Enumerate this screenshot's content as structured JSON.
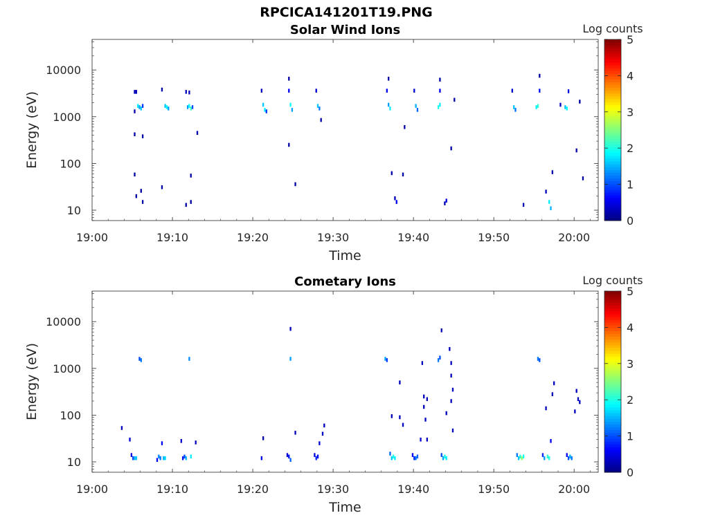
{
  "figure": {
    "title": "RPCICA141201T19.PNG"
  },
  "chart_data": [
    {
      "type": "heatmap",
      "title": "Solar Wind Ions",
      "xlabel": "Time",
      "ylabel": "Energy (eV)",
      "x_unit": "minutes after 19:00",
      "xlim": [
        0,
        63
      ],
      "ylim": [
        6,
        45000
      ],
      "y_scale": "log",
      "xticks": [
        0,
        10,
        20,
        30,
        40,
        50,
        60
      ],
      "xticklabels": [
        "19:00",
        "19:10",
        "19:20",
        "19:30",
        "19:40",
        "19:50",
        "20:00"
      ],
      "yticks": [
        10,
        100,
        1000,
        10000
      ],
      "yticklabels": [
        "10",
        "100",
        "1000",
        "10000"
      ],
      "colorbar": {
        "label": "Log counts",
        "range": [
          0,
          5
        ],
        "ticks": [
          0,
          1,
          2,
          3,
          4,
          5
        ],
        "colormap": "jet"
      },
      "cells": [
        {
          "t": 5.3,
          "e": 3400,
          "v": 0.3
        },
        {
          "t": 5.5,
          "e": 3400,
          "v": 0.3
        },
        {
          "t": 5.7,
          "e": 1700,
          "v": 1.8
        },
        {
          "t": 5.9,
          "e": 1600,
          "v": 1.4
        },
        {
          "t": 6.1,
          "e": 1500,
          "v": 1.6
        },
        {
          "t": 6.3,
          "e": 1700,
          "v": 0.9
        },
        {
          "t": 5.3,
          "e": 1300,
          "v": 0.2
        },
        {
          "t": 5.3,
          "e": 420,
          "v": 0.2
        },
        {
          "t": 6.3,
          "e": 380,
          "v": 0.2
        },
        {
          "t": 5.3,
          "e": 58,
          "v": 0.2
        },
        {
          "t": 5.5,
          "e": 20,
          "v": 0.2
        },
        {
          "t": 6.1,
          "e": 26,
          "v": 0.2
        },
        {
          "t": 6.3,
          "e": 15,
          "v": 0.2
        },
        {
          "t": 8.7,
          "e": 3800,
          "v": 0.2
        },
        {
          "t": 9.1,
          "e": 1700,
          "v": 1.6
        },
        {
          "t": 9.3,
          "e": 1600,
          "v": 1.9
        },
        {
          "t": 9.5,
          "e": 1500,
          "v": 1.4
        },
        {
          "t": 8.7,
          "e": 31,
          "v": 0.2
        },
        {
          "t": 11.7,
          "e": 3400,
          "v": 0.3
        },
        {
          "t": 12.1,
          "e": 3300,
          "v": 0.3
        },
        {
          "t": 11.9,
          "e": 1600,
          "v": 1.4
        },
        {
          "t": 12.1,
          "e": 1700,
          "v": 1.9
        },
        {
          "t": 12.3,
          "e": 1500,
          "v": 2.2
        },
        {
          "t": 12.5,
          "e": 1600,
          "v": 1.0
        },
        {
          "t": 11.7,
          "e": 13,
          "v": 0.2
        },
        {
          "t": 12.3,
          "e": 15,
          "v": 0.2
        },
        {
          "t": 12.3,
          "e": 55,
          "v": 0.2
        },
        {
          "t": 13.1,
          "e": 450,
          "v": 0.2
        },
        {
          "t": 21.1,
          "e": 3600,
          "v": 0.3
        },
        {
          "t": 21.3,
          "e": 1800,
          "v": 1.6
        },
        {
          "t": 21.5,
          "e": 1400,
          "v": 1.8
        },
        {
          "t": 21.7,
          "e": 1300,
          "v": 0.9
        },
        {
          "t": 24.5,
          "e": 3600,
          "v": 0.6
        },
        {
          "t": 24.7,
          "e": 1800,
          "v": 1.9
        },
        {
          "t": 24.9,
          "e": 1400,
          "v": 1.4
        },
        {
          "t": 24.5,
          "e": 6500,
          "v": 0.2
        },
        {
          "t": 24.5,
          "e": 250,
          "v": 0.2
        },
        {
          "t": 25.3,
          "e": 36,
          "v": 0.2
        },
        {
          "t": 27.9,
          "e": 3600,
          "v": 0.4
        },
        {
          "t": 28.1,
          "e": 1700,
          "v": 1.6
        },
        {
          "t": 28.3,
          "e": 1500,
          "v": 1.2
        },
        {
          "t": 28.5,
          "e": 850,
          "v": 0.2
        },
        {
          "t": 36.7,
          "e": 3600,
          "v": 0.6
        },
        {
          "t": 36.9,
          "e": 1800,
          "v": 1.4
        },
        {
          "t": 37.1,
          "e": 1500,
          "v": 1.8
        },
        {
          "t": 36.9,
          "e": 6500,
          "v": 0.2
        },
        {
          "t": 37.3,
          "e": 62,
          "v": 0.2
        },
        {
          "t": 37.7,
          "e": 18,
          "v": 0.3
        },
        {
          "t": 37.9,
          "e": 15,
          "v": 0.6
        },
        {
          "t": 38.7,
          "e": 58,
          "v": 0.2
        },
        {
          "t": 38.9,
          "e": 600,
          "v": 0.2
        },
        {
          "t": 40.1,
          "e": 3600,
          "v": 0.4
        },
        {
          "t": 40.3,
          "e": 1700,
          "v": 1.5
        },
        {
          "t": 40.5,
          "e": 1400,
          "v": 1.1
        },
        {
          "t": 43.1,
          "e": 1600,
          "v": 2.0
        },
        {
          "t": 43.3,
          "e": 1800,
          "v": 1.8
        },
        {
          "t": 43.3,
          "e": 3600,
          "v": 0.6
        },
        {
          "t": 43.3,
          "e": 6200,
          "v": 0.2
        },
        {
          "t": 43.9,
          "e": 14,
          "v": 0.3
        },
        {
          "t": 44.1,
          "e": 16,
          "v": 0.5
        },
        {
          "t": 44.7,
          "e": 210,
          "v": 0.2
        },
        {
          "t": 45.1,
          "e": 2300,
          "v": 0.2
        },
        {
          "t": 52.3,
          "e": 3600,
          "v": 0.4
        },
        {
          "t": 52.5,
          "e": 1600,
          "v": 1.6
        },
        {
          "t": 52.7,
          "e": 1400,
          "v": 1.2
        },
        {
          "t": 53.7,
          "e": 13,
          "v": 0.3
        },
        {
          "t": 55.3,
          "e": 1600,
          "v": 1.8
        },
        {
          "t": 55.5,
          "e": 1700,
          "v": 2.1
        },
        {
          "t": 55.7,
          "e": 3600,
          "v": 0.7
        },
        {
          "t": 55.7,
          "e": 7500,
          "v": 0.2
        },
        {
          "t": 56.5,
          "e": 25,
          "v": 0.3
        },
        {
          "t": 56.9,
          "e": 15,
          "v": 1.8
        },
        {
          "t": 57.1,
          "e": 11,
          "v": 1.5
        },
        {
          "t": 57.3,
          "e": 65,
          "v": 0.2
        },
        {
          "t": 58.3,
          "e": 1800,
          "v": 0.3
        },
        {
          "t": 58.9,
          "e": 1600,
          "v": 1.6
        },
        {
          "t": 59.1,
          "e": 1500,
          "v": 1.9
        },
        {
          "t": 59.3,
          "e": 3500,
          "v": 0.5
        },
        {
          "t": 60.3,
          "e": 190,
          "v": 0.2
        },
        {
          "t": 60.7,
          "e": 2100,
          "v": 0.2
        },
        {
          "t": 61.1,
          "e": 48,
          "v": 0.2
        }
      ]
    },
    {
      "type": "heatmap",
      "title": "Cometary Ions",
      "xlabel": "Time",
      "ylabel": "Energy (eV)",
      "x_unit": "minutes after 19:00",
      "xlim": [
        0,
        63
      ],
      "ylim": [
        6,
        45000
      ],
      "y_scale": "log",
      "xticks": [
        0,
        10,
        20,
        30,
        40,
        50,
        60
      ],
      "xticklabels": [
        "19:00",
        "19:10",
        "19:20",
        "19:30",
        "19:40",
        "19:50",
        "20:00"
      ],
      "yticks": [
        10,
        100,
        1000,
        10000
      ],
      "yticklabels": [
        "10",
        "100",
        "1000",
        "10000"
      ],
      "colorbar": {
        "label": "Log counts",
        "range": [
          0,
          5
        ],
        "ticks": [
          0,
          1,
          2,
          3,
          4,
          5
        ],
        "colormap": "jet"
      },
      "cells": [
        {
          "t": 3.7,
          "e": 53,
          "v": 0.3
        },
        {
          "t": 4.7,
          "e": 30,
          "v": 0.4
        },
        {
          "t": 4.9,
          "e": 14,
          "v": 0.5
        },
        {
          "t": 5.1,
          "e": 12,
          "v": 1.0
        },
        {
          "t": 5.3,
          "e": 12,
          "v": 1.5
        },
        {
          "t": 5.5,
          "e": 12,
          "v": 1.6
        },
        {
          "t": 5.9,
          "e": 1600,
          "v": 1.0
        },
        {
          "t": 6.1,
          "e": 1500,
          "v": 1.2
        },
        {
          "t": 8.1,
          "e": 11,
          "v": 0.6
        },
        {
          "t": 8.3,
          "e": 13,
          "v": 1.3
        },
        {
          "t": 8.5,
          "e": 12,
          "v": 1.2
        },
        {
          "t": 8.7,
          "e": 25,
          "v": 0.6
        },
        {
          "t": 8.9,
          "e": 12,
          "v": 1.5
        },
        {
          "t": 9.1,
          "e": 12,
          "v": 1.7
        },
        {
          "t": 11.1,
          "e": 28,
          "v": 0.4
        },
        {
          "t": 11.3,
          "e": 12,
          "v": 0.7
        },
        {
          "t": 11.5,
          "e": 13,
          "v": 1.0
        },
        {
          "t": 11.7,
          "e": 12,
          "v": 1.5
        },
        {
          "t": 12.3,
          "e": 13,
          "v": 1.8
        },
        {
          "t": 12.1,
          "e": 1600,
          "v": 1.3
        },
        {
          "t": 12.9,
          "e": 26,
          "v": 0.3
        },
        {
          "t": 21.1,
          "e": 12,
          "v": 0.5
        },
        {
          "t": 21.3,
          "e": 32,
          "v": 0.2
        },
        {
          "t": 24.3,
          "e": 14,
          "v": 0.4
        },
        {
          "t": 24.5,
          "e": 13,
          "v": 0.7
        },
        {
          "t": 24.7,
          "e": 11,
          "v": 1.1
        },
        {
          "t": 24.7,
          "e": 1600,
          "v": 1.4
        },
        {
          "t": 24.7,
          "e": 7000,
          "v": 0.3
        },
        {
          "t": 25.3,
          "e": 42,
          "v": 0.3
        },
        {
          "t": 27.7,
          "e": 14,
          "v": 0.5
        },
        {
          "t": 27.9,
          "e": 12,
          "v": 0.8
        },
        {
          "t": 28.1,
          "e": 13,
          "v": 0.6
        },
        {
          "t": 28.3,
          "e": 25,
          "v": 0.4
        },
        {
          "t": 28.7,
          "e": 40,
          "v": 0.3
        },
        {
          "t": 28.9,
          "e": 60,
          "v": 0.3
        },
        {
          "t": 36.5,
          "e": 1600,
          "v": 1.4
        },
        {
          "t": 36.7,
          "e": 1500,
          "v": 0.9
        },
        {
          "t": 37.1,
          "e": 15,
          "v": 1.1
        },
        {
          "t": 37.3,
          "e": 12,
          "v": 1.6
        },
        {
          "t": 37.5,
          "e": 13,
          "v": 2.0
        },
        {
          "t": 37.7,
          "e": 12,
          "v": 1.8
        },
        {
          "t": 37.3,
          "e": 95,
          "v": 0.3
        },
        {
          "t": 38.3,
          "e": 500,
          "v": 0.3
        },
        {
          "t": 38.3,
          "e": 90,
          "v": 0.3
        },
        {
          "t": 38.7,
          "e": 62,
          "v": 0.3
        },
        {
          "t": 39.9,
          "e": 14,
          "v": 0.6
        },
        {
          "t": 40.1,
          "e": 12,
          "v": 0.8
        },
        {
          "t": 40.3,
          "e": 12,
          "v": 1.2
        },
        {
          "t": 40.5,
          "e": 13,
          "v": 1.1
        },
        {
          "t": 40.9,
          "e": 30,
          "v": 0.4
        },
        {
          "t": 41.1,
          "e": 1300,
          "v": 0.3
        },
        {
          "t": 41.3,
          "e": 250,
          "v": 0.3
        },
        {
          "t": 41.3,
          "e": 150,
          "v": 0.3
        },
        {
          "t": 41.5,
          "e": 80,
          "v": 0.3
        },
        {
          "t": 41.7,
          "e": 220,
          "v": 0.3
        },
        {
          "t": 41.7,
          "e": 30,
          "v": 0.3
        },
        {
          "t": 43.1,
          "e": 1500,
          "v": 1.2
        },
        {
          "t": 43.3,
          "e": 1700,
          "v": 1.0
        },
        {
          "t": 43.5,
          "e": 6500,
          "v": 0.3
        },
        {
          "t": 43.5,
          "e": 14,
          "v": 1.0
        },
        {
          "t": 43.7,
          "e": 12,
          "v": 1.4
        },
        {
          "t": 43.9,
          "e": 13,
          "v": 2.0
        },
        {
          "t": 44.1,
          "e": 12,
          "v": 1.8
        },
        {
          "t": 44.1,
          "e": 110,
          "v": 0.3
        },
        {
          "t": 44.5,
          "e": 2600,
          "v": 0.3
        },
        {
          "t": 44.7,
          "e": 1300,
          "v": 0.3
        },
        {
          "t": 44.7,
          "e": 700,
          "v": 0.3
        },
        {
          "t": 44.9,
          "e": 350,
          "v": 0.3
        },
        {
          "t": 44.7,
          "e": 200,
          "v": 0.3
        },
        {
          "t": 44.9,
          "e": 47,
          "v": 0.3
        },
        {
          "t": 52.9,
          "e": 14,
          "v": 1.2
        },
        {
          "t": 53.1,
          "e": 12,
          "v": 1.6
        },
        {
          "t": 53.3,
          "e": 13,
          "v": 2.1
        },
        {
          "t": 53.5,
          "e": 12,
          "v": 2.6
        },
        {
          "t": 53.7,
          "e": 13,
          "v": 1.9
        },
        {
          "t": 55.5,
          "e": 1600,
          "v": 1.2
        },
        {
          "t": 55.7,
          "e": 1500,
          "v": 1.0
        },
        {
          "t": 56.1,
          "e": 14,
          "v": 0.8
        },
        {
          "t": 56.3,
          "e": 12,
          "v": 1.4
        },
        {
          "t": 56.5,
          "e": 140,
          "v": 0.3
        },
        {
          "t": 56.7,
          "e": 13,
          "v": 2.1
        },
        {
          "t": 56.9,
          "e": 12,
          "v": 2.0
        },
        {
          "t": 57.1,
          "e": 28,
          "v": 0.6
        },
        {
          "t": 57.3,
          "e": 280,
          "v": 0.3
        },
        {
          "t": 57.5,
          "e": 480,
          "v": 0.3
        },
        {
          "t": 59.1,
          "e": 14,
          "v": 0.6
        },
        {
          "t": 59.3,
          "e": 12,
          "v": 1.0
        },
        {
          "t": 59.5,
          "e": 13,
          "v": 1.5
        },
        {
          "t": 59.7,
          "e": 12,
          "v": 1.2
        },
        {
          "t": 60.1,
          "e": 120,
          "v": 0.3
        },
        {
          "t": 60.3,
          "e": 330,
          "v": 0.3
        },
        {
          "t": 60.5,
          "e": 220,
          "v": 0.3
        },
        {
          "t": 60.7,
          "e": 190,
          "v": 0.3
        }
      ]
    }
  ]
}
